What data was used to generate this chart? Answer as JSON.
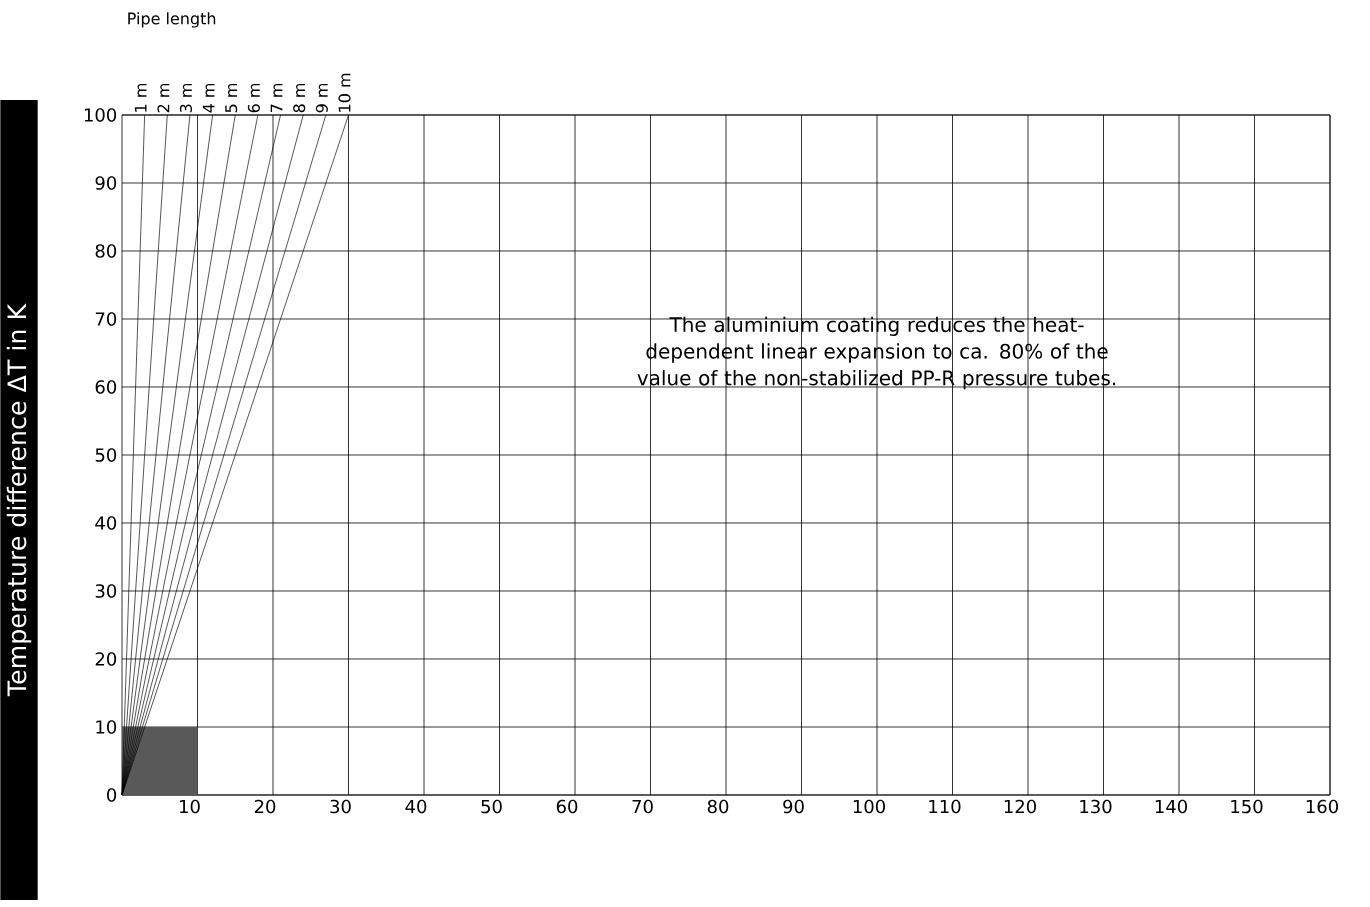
{
  "chart_data": {
    "type": "line",
    "ylabel": "Temperature difference ΔT in K",
    "legend_title": "Pipe length",
    "annotations": [
      "The aluminium coating reduces the heat-dependent linear expansion to ca. 80% of the value of the non-stabilized PP-R pressure tubes."
    ],
    "xlim": [
      0,
      160
    ],
    "xticks": [
      10,
      20,
      30,
      40,
      50,
      60,
      70,
      80,
      90,
      100,
      110,
      120,
      130,
      140,
      150,
      160
    ],
    "ylim": [
      0,
      100
    ],
    "yticks": [
      0,
      10,
      20,
      30,
      40,
      50,
      60,
      70,
      80,
      90,
      100
    ],
    "grid": true,
    "marker": "none",
    "series": [
      {
        "type": "area",
        "color": "#595959",
        "x": [
          0,
          10
        ],
        "values": [
          10,
          10
        ]
      },
      {
        "name": "1 m",
        "color": "#000000",
        "x": [
          0,
          3
        ],
        "values": [
          0,
          100
        ]
      },
      {
        "name": "2 m",
        "color": "#000000",
        "x": [
          0,
          6
        ],
        "values": [
          0,
          100
        ]
      },
      {
        "name": "3 m",
        "color": "#000000",
        "x": [
          0,
          9
        ],
        "values": [
          0,
          100
        ]
      },
      {
        "name": "4 m",
        "color": "#000000",
        "x": [
          0,
          12
        ],
        "values": [
          0,
          100
        ]
      },
      {
        "name": "5 m",
        "color": "#000000",
        "x": [
          0,
          15
        ],
        "values": [
          0,
          100
        ]
      },
      {
        "name": "6 m",
        "color": "#000000",
        "x": [
          0,
          18
        ],
        "values": [
          0,
          100
        ]
      },
      {
        "name": "7 m",
        "color": "#000000",
        "x": [
          0,
          21
        ],
        "values": [
          0,
          100
        ]
      },
      {
        "name": "8 m",
        "color": "#000000",
        "x": [
          0,
          24
        ],
        "values": [
          0,
          100
        ]
      },
      {
        "name": "9 m",
        "color": "#000000",
        "x": [
          0,
          27
        ],
        "values": [
          0,
          100
        ]
      },
      {
        "name": "10 m",
        "color": "#000000",
        "x": [
          0,
          30
        ],
        "values": [
          0,
          100
        ]
      }
    ]
  }
}
